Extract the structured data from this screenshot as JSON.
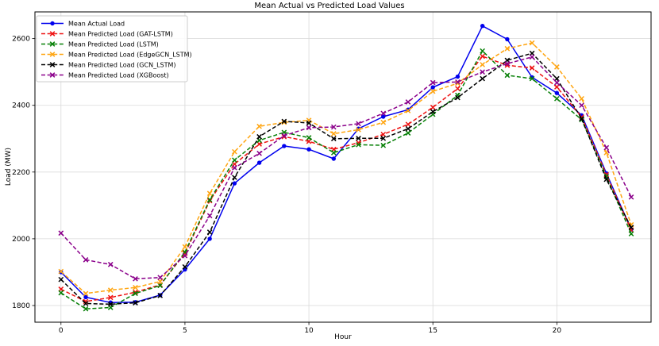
{
  "chart_data": {
    "type": "line",
    "title": "Mean Actual vs Predicted Load Values",
    "xlabel": "Hour",
    "ylabel": "Load (MW)",
    "x": [
      0,
      1,
      2,
      3,
      4,
      5,
      6,
      7,
      8,
      9,
      10,
      11,
      12,
      13,
      14,
      15,
      16,
      17,
      18,
      19,
      20,
      21,
      22,
      23
    ],
    "xticks": [
      0,
      5,
      10,
      15,
      20
    ],
    "yticks": [
      1800,
      2000,
      2200,
      2400,
      2600
    ],
    "xlim": [
      -1.05,
      23.8
    ],
    "ylim": [
      1750,
      2680
    ],
    "grid": true,
    "grid_color": "#d9d9d9",
    "legend_position": "upper left",
    "series": [
      {
        "name": "Mean Actual Load",
        "color": "#0000ee",
        "style": "solid",
        "marker": "circle",
        "values": [
          1900,
          1825,
          1809,
          1810,
          1831,
          1908,
          2000,
          2166,
          2228,
          2278,
          2268,
          2240,
          2330,
          2366,
          2387,
          2454,
          2486,
          2638,
          2598,
          2484,
          2437,
          2370,
          2196,
          2028
        ]
      },
      {
        "name": "Mean Predicted Load (GAT-LSTM)",
        "color": "#ee1111",
        "style": "dashed",
        "marker": "x",
        "values": [
          1849,
          1812,
          1824,
          1840,
          1862,
          1956,
          2114,
          2224,
          2284,
          2306,
          2292,
          2268,
          2288,
          2313,
          2343,
          2394,
          2450,
          2547,
          2520,
          2512,
          2455,
          2365,
          2192,
          2026
        ]
      },
      {
        "name": "Mean Predicted Load (LSTM)",
        "color": "#078007",
        "style": "dashed",
        "marker": "x",
        "values": [
          1838,
          1790,
          1794,
          1836,
          1860,
          1960,
          2117,
          2236,
          2295,
          2319,
          2303,
          2258,
          2282,
          2280,
          2317,
          2373,
          2430,
          2563,
          2490,
          2480,
          2420,
          2357,
          2186,
          2015
        ]
      },
      {
        "name": "Mean Predicted Load (EdgeGCN_LSTM)",
        "color": "#ffa510",
        "style": "dashed",
        "marker": "x",
        "values": [
          1902,
          1836,
          1846,
          1854,
          1872,
          1976,
          2136,
          2261,
          2337,
          2349,
          2355,
          2315,
          2327,
          2349,
          2384,
          2442,
          2466,
          2522,
          2570,
          2587,
          2515,
          2420,
          2258,
          2042
        ]
      },
      {
        "name": "Mean Predicted Load (GCN_LSTM)",
        "color": "#000000",
        "style": "dashed",
        "marker": "x",
        "values": [
          1878,
          1806,
          1804,
          1808,
          1830,
          1916,
          2020,
          2184,
          2306,
          2352,
          2347,
          2300,
          2301,
          2301,
          2330,
          2381,
          2423,
          2480,
          2535,
          2556,
          2480,
          2360,
          2178,
          2034
        ]
      },
      {
        "name": "Mean Predicted Load (XGBoost)",
        "color": "#8b008b",
        "style": "dashed",
        "marker": "x",
        "values": [
          2017,
          1937,
          1923,
          1880,
          1884,
          1949,
          2069,
          2213,
          2256,
          2309,
          2333,
          2335,
          2345,
          2376,
          2410,
          2468,
          2470,
          2500,
          2525,
          2545,
          2468,
          2400,
          2273,
          2125
        ]
      }
    ]
  }
}
